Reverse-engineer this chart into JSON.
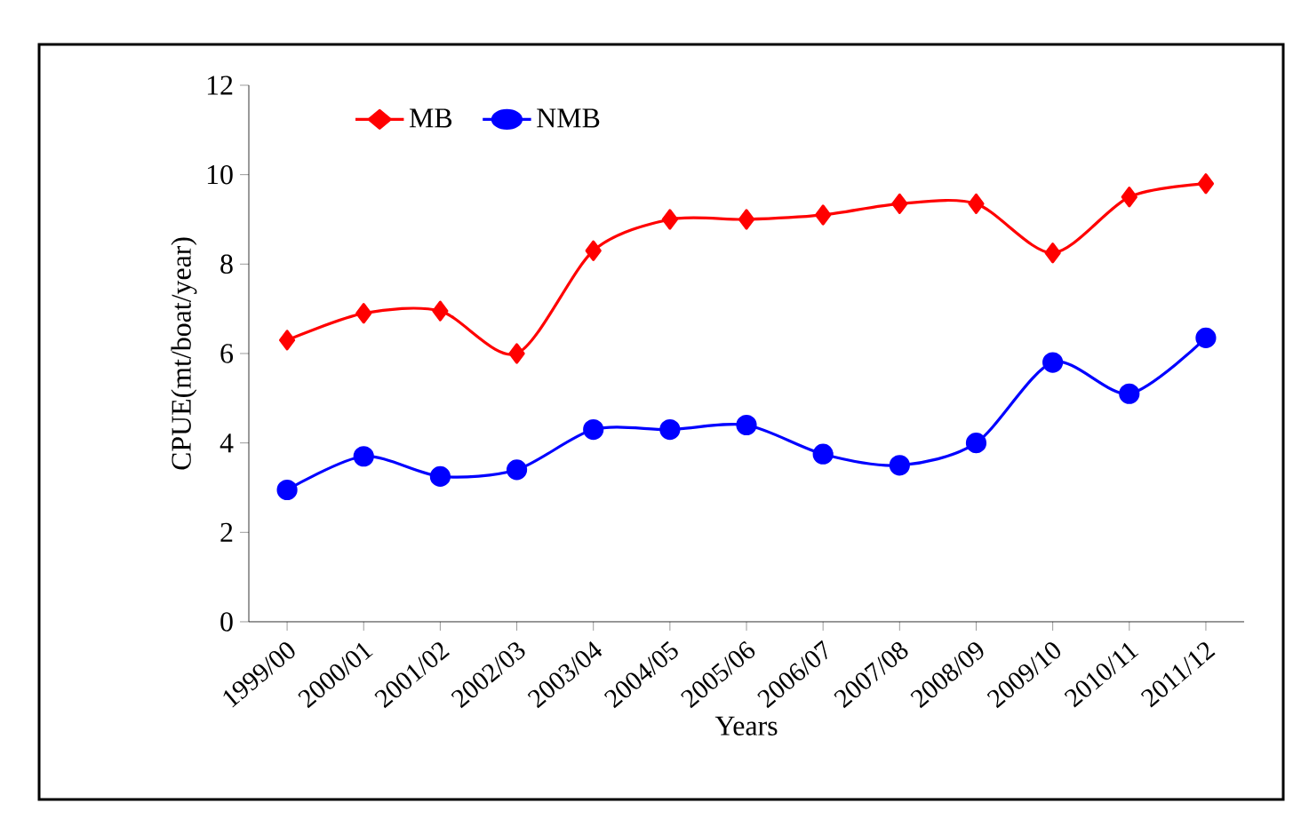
{
  "chart_data": {
    "type": "line",
    "xlabel": "Years",
    "ylabel": "CPUE(mt/boat/year)",
    "categories": [
      "1999/00",
      "2000/01",
      "2001/02",
      "2002/03",
      "2003/04",
      "2004/05",
      "2005/06",
      "2006/07",
      "2007/08",
      "2008/09",
      "2009/10",
      "2010/11",
      "2011/12"
    ],
    "series": [
      {
        "name": "MB",
        "color": "#ff0000",
        "marker": "diamond",
        "values": [
          6.3,
          6.9,
          6.95,
          6.0,
          8.3,
          9.0,
          9.0,
          9.1,
          9.35,
          9.35,
          8.25,
          9.5,
          9.8
        ]
      },
      {
        "name": "NMB",
        "color": "#0000ff",
        "marker": "circle",
        "values": [
          2.95,
          3.7,
          3.25,
          3.4,
          4.3,
          4.3,
          4.4,
          3.75,
          3.5,
          4.0,
          5.8,
          5.1,
          6.35
        ]
      }
    ],
    "ylim": [
      0,
      12
    ],
    "yticks": [
      0,
      2,
      4,
      6,
      8,
      10,
      12
    ],
    "legend": "top left",
    "grid": false,
    "line_style": "solid"
  }
}
